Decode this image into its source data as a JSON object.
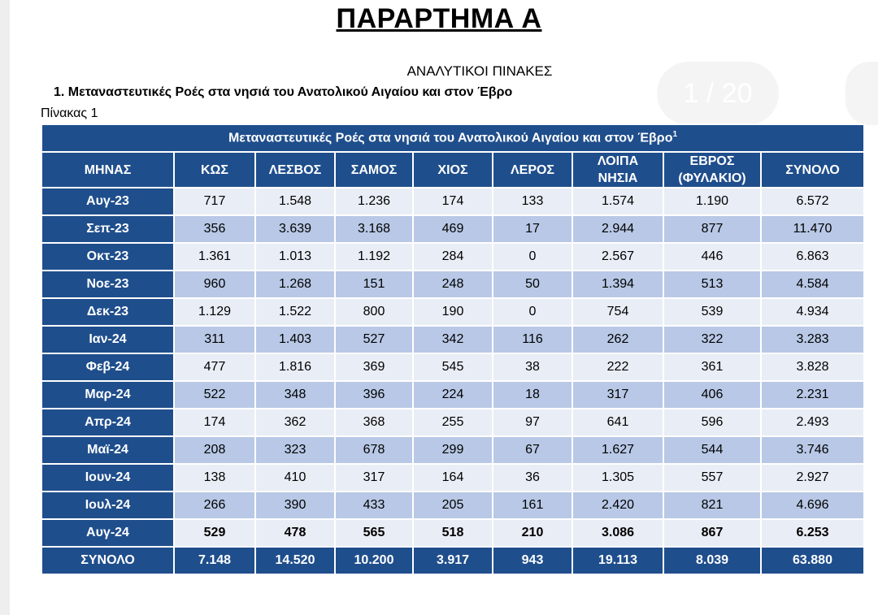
{
  "document": {
    "title": "ΠΑΡΑΡΤΗΜΑ Α",
    "subtitle": "ΑΝΑΛΥΤΙΚΟΙ ΠΙΝΑΚΕΣ",
    "section_heading": "1. Μεταναστευτικές Ροές στα νησιά του Ανατολικού Αιγαίου και στον Έβρο",
    "table_caption": "Πίνακας 1",
    "page_indicator": "1 / 20"
  },
  "table": {
    "banner": "Μεταναστευτικές Ροές στα νησιά του Ανατολικού Αιγαίου και στον Έβρο",
    "banner_footnote": "1",
    "columns": [
      "ΜΗΝΑΣ",
      "ΚΩΣ",
      "ΛΕΣΒΟΣ",
      "ΣΑΜΟΣ",
      "ΧΙΟΣ",
      "ΛΕΡΟΣ",
      "ΛΟΙΠΑ ΝΗΣΙΑ",
      "ΕΒΡΟΣ (ΦΥΛΑΚΙΟ)",
      "ΣΥΝΟΛΟ"
    ],
    "rows": [
      [
        "Αυγ-23",
        "717",
        "1.548",
        "1.236",
        "174",
        "133",
        "1.574",
        "1.190",
        "6.572"
      ],
      [
        "Σεπ-23",
        "356",
        "3.639",
        "3.168",
        "469",
        "17",
        "2.944",
        "877",
        "11.470"
      ],
      [
        "Οκτ-23",
        "1.361",
        "1.013",
        "1.192",
        "284",
        "0",
        "2.567",
        "446",
        "6.863"
      ],
      [
        "Νοε-23",
        "960",
        "1.268",
        "151",
        "248",
        "50",
        "1.394",
        "513",
        "4.584"
      ],
      [
        "Δεκ-23",
        "1.129",
        "1.522",
        "800",
        "190",
        "0",
        "754",
        "539",
        "4.934"
      ],
      [
        "Ιαν-24",
        "311",
        "1.403",
        "527",
        "342",
        "116",
        "262",
        "322",
        "3.283"
      ],
      [
        "Φεβ-24",
        "477",
        "1.816",
        "369",
        "545",
        "38",
        "222",
        "361",
        "3.828"
      ],
      [
        "Μαρ-24",
        "522",
        "348",
        "396",
        "224",
        "18",
        "317",
        "406",
        "2.231"
      ],
      [
        "Απρ-24",
        "174",
        "362",
        "368",
        "255",
        "97",
        "641",
        "596",
        "2.493"
      ],
      [
        "Μαϊ-24",
        "208",
        "323",
        "678",
        "299",
        "67",
        "1.627",
        "544",
        "3.746"
      ],
      [
        "Ιουν-24",
        "138",
        "410",
        "317",
        "164",
        "36",
        "1.305",
        "557",
        "2.927"
      ],
      [
        "Ιουλ-24",
        "266",
        "390",
        "433",
        "205",
        "161",
        "2.420",
        "821",
        "4.696"
      ],
      [
        "Αυγ-24",
        "529",
        "478",
        "565",
        "518",
        "210",
        "3.086",
        "867",
        "6.253"
      ]
    ],
    "total_row": [
      "ΣΥΝΟΛΟ",
      "7.148",
      "14.520",
      "10.200",
      "3.917",
      "943",
      "19.113",
      "8.039",
      "63.880"
    ]
  },
  "colors": {
    "header_blue": "#1f4e8c",
    "row_light": "#e9edf5",
    "row_dark": "#b8c8e6"
  }
}
